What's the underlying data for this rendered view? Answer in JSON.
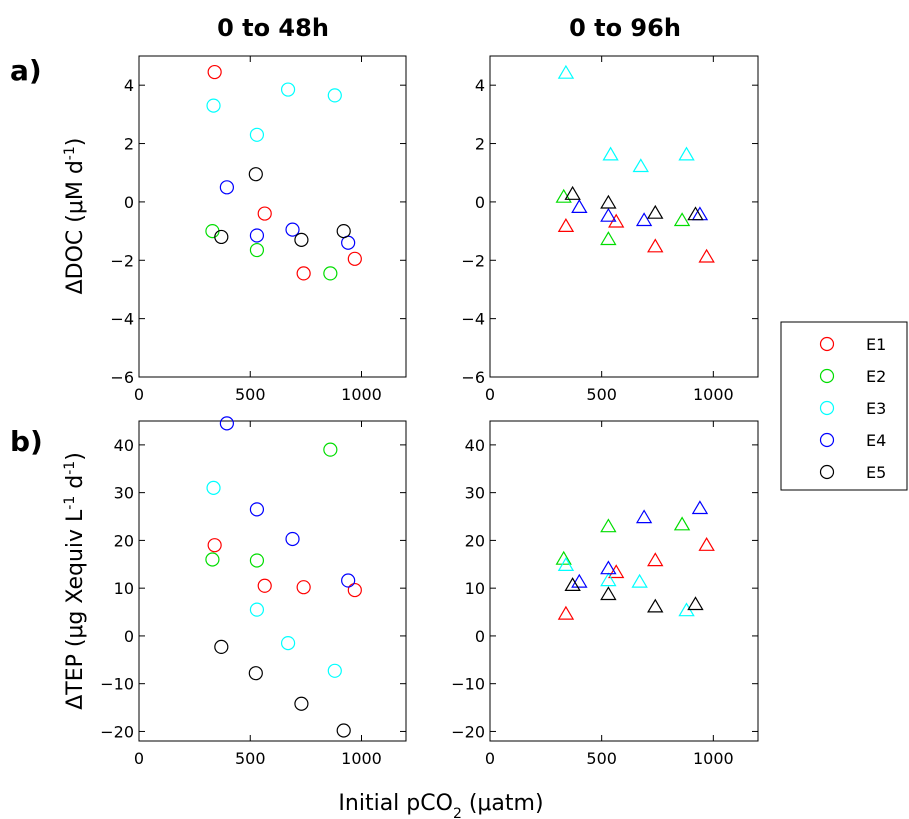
{
  "figure": {
    "col_titles": [
      "0 to 48h",
      "0 to 96h"
    ],
    "row_labels": [
      "a)",
      "b)"
    ],
    "xlabel": "Initial pCO₂ (μatm)",
    "ylabel_top": "ΔDOC (μM d⁻¹)",
    "ylabel_bottom": "ΔTEP (μg Xequiv L⁻¹ d⁻¹)"
  },
  "legend": {
    "entries": [
      {
        "name": "E1",
        "color": "#ff0000"
      },
      {
        "name": "E2",
        "color": "#00dd00"
      },
      {
        "name": "E3",
        "color": "#00ffff"
      },
      {
        "name": "E4",
        "color": "#0000ff"
      },
      {
        "name": "E5",
        "color": "#000000"
      }
    ]
  },
  "chart_data": [
    {
      "type": "scatter",
      "panel": "a) 0 to 48h",
      "marker": "circle",
      "xlim": [
        0,
        1200
      ],
      "ylim": [
        -6,
        5
      ],
      "xticks": [
        0,
        500,
        1000
      ],
      "yticks": [
        -6,
        -4,
        -2,
        0,
        2,
        4
      ],
      "series": [
        {
          "name": "E1",
          "color": "#ff0000",
          "points": [
            [
              340,
              4.45
            ],
            [
              565,
              -0.4
            ],
            [
              740,
              -2.45
            ],
            [
              970,
              -1.95
            ]
          ]
        },
        {
          "name": "E2",
          "color": "#00dd00",
          "points": [
            [
              330,
              -1.0
            ],
            [
              530,
              -1.65
            ],
            [
              860,
              -2.45
            ]
          ]
        },
        {
          "name": "E3",
          "color": "#00ffff",
          "points": [
            [
              335,
              3.3
            ],
            [
              530,
              2.3
            ],
            [
              670,
              3.85
            ],
            [
              880,
              3.65
            ]
          ]
        },
        {
          "name": "E4",
          "color": "#0000ff",
          "points": [
            [
              395,
              0.5
            ],
            [
              530,
              -1.15
            ],
            [
              690,
              -0.95
            ],
            [
              940,
              -1.4
            ]
          ]
        },
        {
          "name": "E5",
          "color": "#000000",
          "points": [
            [
              370,
              -1.2
            ],
            [
              525,
              0.95
            ],
            [
              730,
              -1.3
            ],
            [
              920,
              -1.0
            ]
          ]
        }
      ]
    },
    {
      "type": "scatter",
      "panel": "a) 0 to 96h",
      "marker": "triangle",
      "xlim": [
        0,
        1200
      ],
      "ylim": [
        -6,
        5
      ],
      "xticks": [
        0,
        500,
        1000
      ],
      "yticks": [
        -6,
        -4,
        -2,
        0,
        2,
        4
      ],
      "series": [
        {
          "name": "E1",
          "color": "#ff0000",
          "points": [
            [
              340,
              -0.85
            ],
            [
              565,
              -0.7
            ],
            [
              740,
              -1.55
            ],
            [
              970,
              -1.9
            ]
          ]
        },
        {
          "name": "E2",
          "color": "#00dd00",
          "points": [
            [
              330,
              0.15
            ],
            [
              530,
              -1.3
            ],
            [
              860,
              -0.65
            ]
          ]
        },
        {
          "name": "E3",
          "color": "#00ffff",
          "points": [
            [
              340,
              4.4
            ],
            [
              540,
              1.6
            ],
            [
              675,
              1.2
            ],
            [
              880,
              1.6
            ]
          ]
        },
        {
          "name": "E4",
          "color": "#0000ff",
          "points": [
            [
              400,
              -0.2
            ],
            [
              530,
              -0.5
            ],
            [
              690,
              -0.65
            ],
            [
              940,
              -0.45
            ]
          ]
        },
        {
          "name": "E5",
          "color": "#000000",
          "points": [
            [
              370,
              0.25
            ],
            [
              530,
              -0.05
            ],
            [
              740,
              -0.4
            ],
            [
              920,
              -0.45
            ]
          ]
        }
      ]
    },
    {
      "type": "scatter",
      "panel": "b) 0 to 48h",
      "marker": "circle",
      "xlim": [
        0,
        1200
      ],
      "ylim": [
        -22,
        45
      ],
      "xticks": [
        0,
        500,
        1000
      ],
      "yticks": [
        -20,
        -10,
        0,
        10,
        20,
        30,
        40
      ],
      "series": [
        {
          "name": "E1",
          "color": "#ff0000",
          "points": [
            [
              340,
              19.0
            ],
            [
              565,
              10.5
            ],
            [
              740,
              10.2
            ],
            [
              970,
              9.6
            ]
          ]
        },
        {
          "name": "E2",
          "color": "#00dd00",
          "points": [
            [
              330,
              16.0
            ],
            [
              530,
              15.8
            ],
            [
              860,
              39.0
            ]
          ]
        },
        {
          "name": "E3",
          "color": "#00ffff",
          "points": [
            [
              335,
              31.0
            ],
            [
              530,
              5.5
            ],
            [
              670,
              -1.5
            ],
            [
              880,
              -7.3
            ]
          ]
        },
        {
          "name": "E4",
          "color": "#0000ff",
          "points": [
            [
              395,
              44.5
            ],
            [
              530,
              26.5
            ],
            [
              690,
              20.3
            ],
            [
              940,
              11.6
            ]
          ]
        },
        {
          "name": "E5",
          "color": "#000000",
          "points": [
            [
              370,
              -2.3
            ],
            [
              525,
              -7.8
            ],
            [
              730,
              -14.2
            ],
            [
              920,
              -19.8
            ]
          ]
        }
      ]
    },
    {
      "type": "scatter",
      "panel": "b) 0 to 96h",
      "marker": "triangle",
      "xlim": [
        0,
        1200
      ],
      "ylim": [
        -22,
        45
      ],
      "xticks": [
        0,
        500,
        1000
      ],
      "yticks": [
        -20,
        -10,
        0,
        10,
        20,
        30,
        40
      ],
      "series": [
        {
          "name": "E1",
          "color": "#ff0000",
          "points": [
            [
              340,
              4.5
            ],
            [
              565,
              13.2
            ],
            [
              740,
              15.7
            ],
            [
              970,
              18.9
            ]
          ]
        },
        {
          "name": "E2",
          "color": "#00dd00",
          "points": [
            [
              330,
              16.0
            ],
            [
              530,
              22.8
            ],
            [
              860,
              23.2
            ]
          ]
        },
        {
          "name": "E3",
          "color": "#00ffff",
          "points": [
            [
              340,
              14.7
            ],
            [
              530,
              11.5
            ],
            [
              670,
              11.2
            ],
            [
              880,
              5.2
            ]
          ]
        },
        {
          "name": "E4",
          "color": "#0000ff",
          "points": [
            [
              400,
              11.2
            ],
            [
              530,
              14.0
            ],
            [
              690,
              24.7
            ],
            [
              940,
              26.6
            ]
          ]
        },
        {
          "name": "E5",
          "color": "#000000",
          "points": [
            [
              370,
              10.5
            ],
            [
              530,
              8.6
            ],
            [
              740,
              6.0
            ],
            [
              920,
              6.5
            ]
          ]
        }
      ]
    }
  ]
}
